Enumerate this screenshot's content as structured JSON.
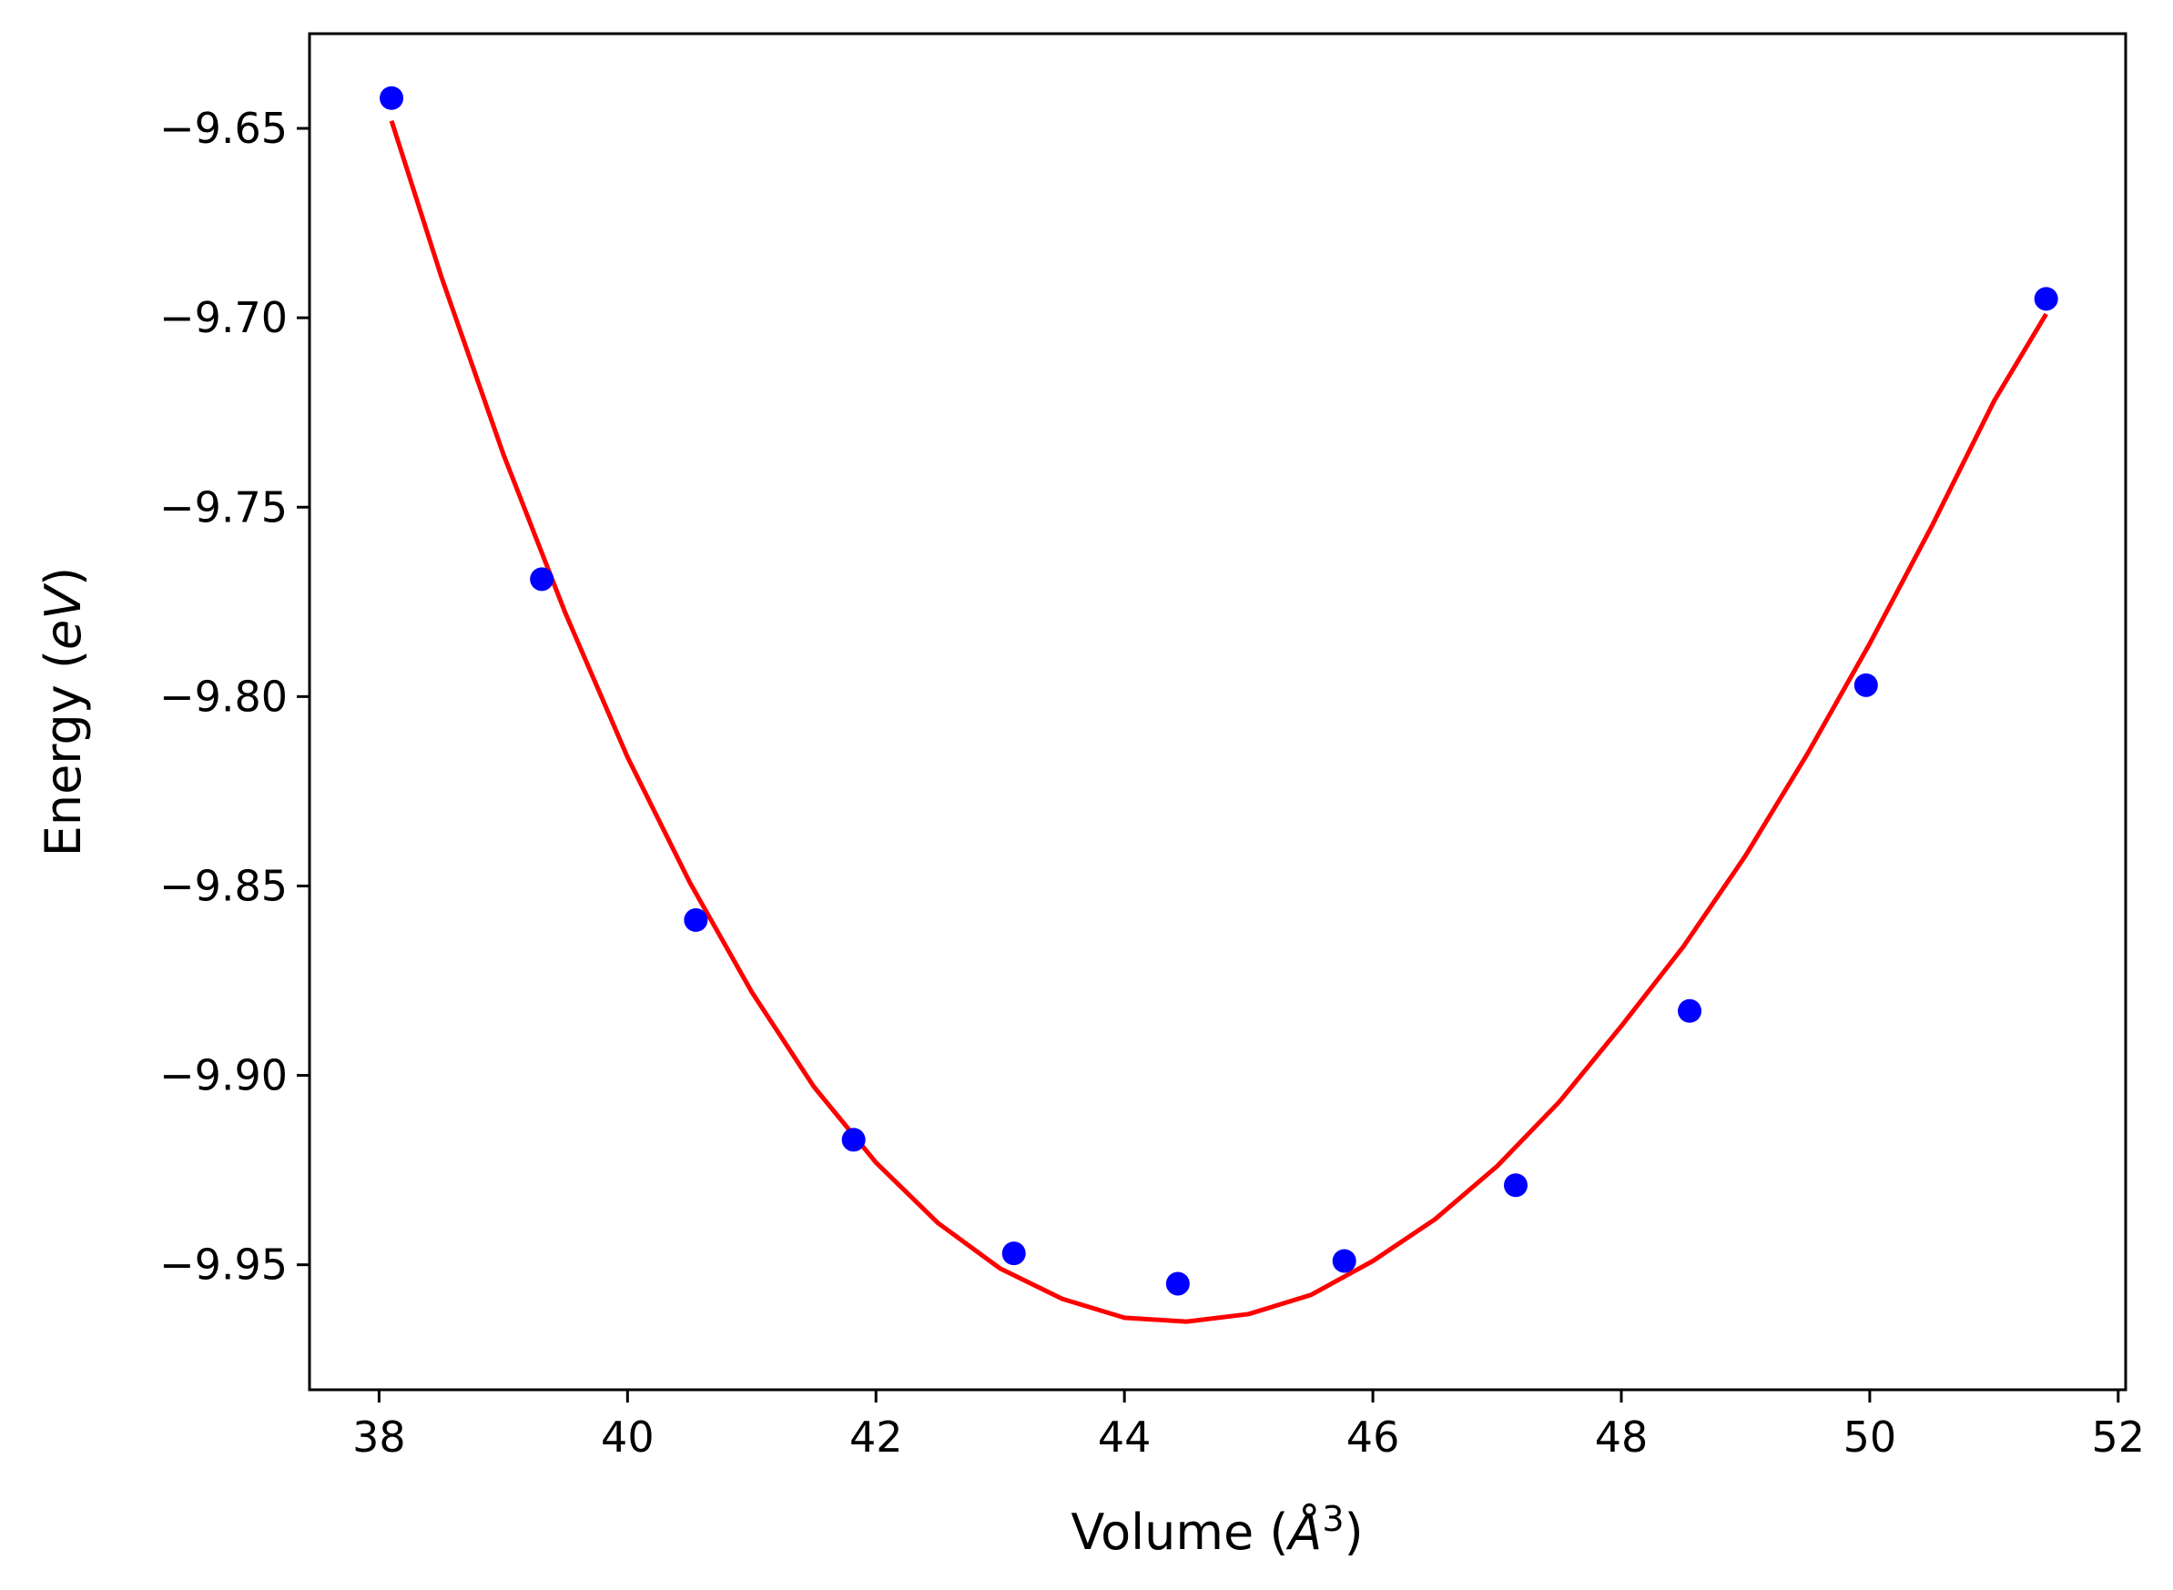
{
  "chart_data": {
    "type": "scatter",
    "xlabel": "Volume",
    "xlabel_unit_symbol": "Å",
    "xlabel_unit_exponent": "3",
    "ylabel": "Energy",
    "ylabel_unit": "eV",
    "xlim": [
      37.44,
      52.06
    ],
    "ylim": [
      -9.983,
      -9.625
    ],
    "x_ticks": [
      38,
      40,
      42,
      44,
      46,
      48,
      50,
      52
    ],
    "x_tick_labels": [
      "38",
      "40",
      "42",
      "44",
      "46",
      "48",
      "50",
      "52"
    ],
    "y_ticks": [
      -9.65,
      -9.7,
      -9.75,
      -9.8,
      -9.85,
      -9.9,
      -9.95
    ],
    "y_tick_labels": [
      "−9.65",
      "−9.70",
      "−9.75",
      "−9.80",
      "−9.85",
      "−9.90",
      "−9.95"
    ],
    "grid": false,
    "legend": "none",
    "series": [
      {
        "kind": "points",
        "color": "#0000ff",
        "x": [
          38.1,
          39.31,
          40.55,
          41.82,
          43.11,
          44.43,
          45.77,
          47.15,
          48.55,
          49.97,
          51.42
        ],
        "y": [
          -9.642,
          -9.769,
          -9.859,
          -9.917,
          -9.947,
          -9.955,
          -9.949,
          -9.929,
          -9.883,
          -9.797,
          -9.695
        ]
      },
      {
        "kind": "fit-curve",
        "color": "#ff0000",
        "x": [
          38.1,
          38.5,
          39.0,
          39.5,
          40.0,
          40.5,
          41.0,
          41.5,
          42.0,
          42.5,
          43.0,
          43.5,
          44.0,
          44.5,
          45.0,
          45.5,
          46.0,
          46.5,
          47.0,
          47.5,
          48.0,
          48.5,
          49.0,
          49.5,
          50.0,
          50.5,
          51.0,
          51.42
        ],
        "y": [
          -9.648,
          -9.689,
          -9.736,
          -9.778,
          -9.816,
          -9.849,
          -9.878,
          -9.903,
          -9.923,
          -9.939,
          -9.951,
          -9.959,
          -9.964,
          -9.965,
          -9.963,
          -9.958,
          -9.949,
          -9.938,
          -9.924,
          -9.907,
          -9.887,
          -9.866,
          -9.842,
          -9.815,
          -9.786,
          -9.755,
          -9.722,
          -9.699
        ]
      }
    ]
  }
}
